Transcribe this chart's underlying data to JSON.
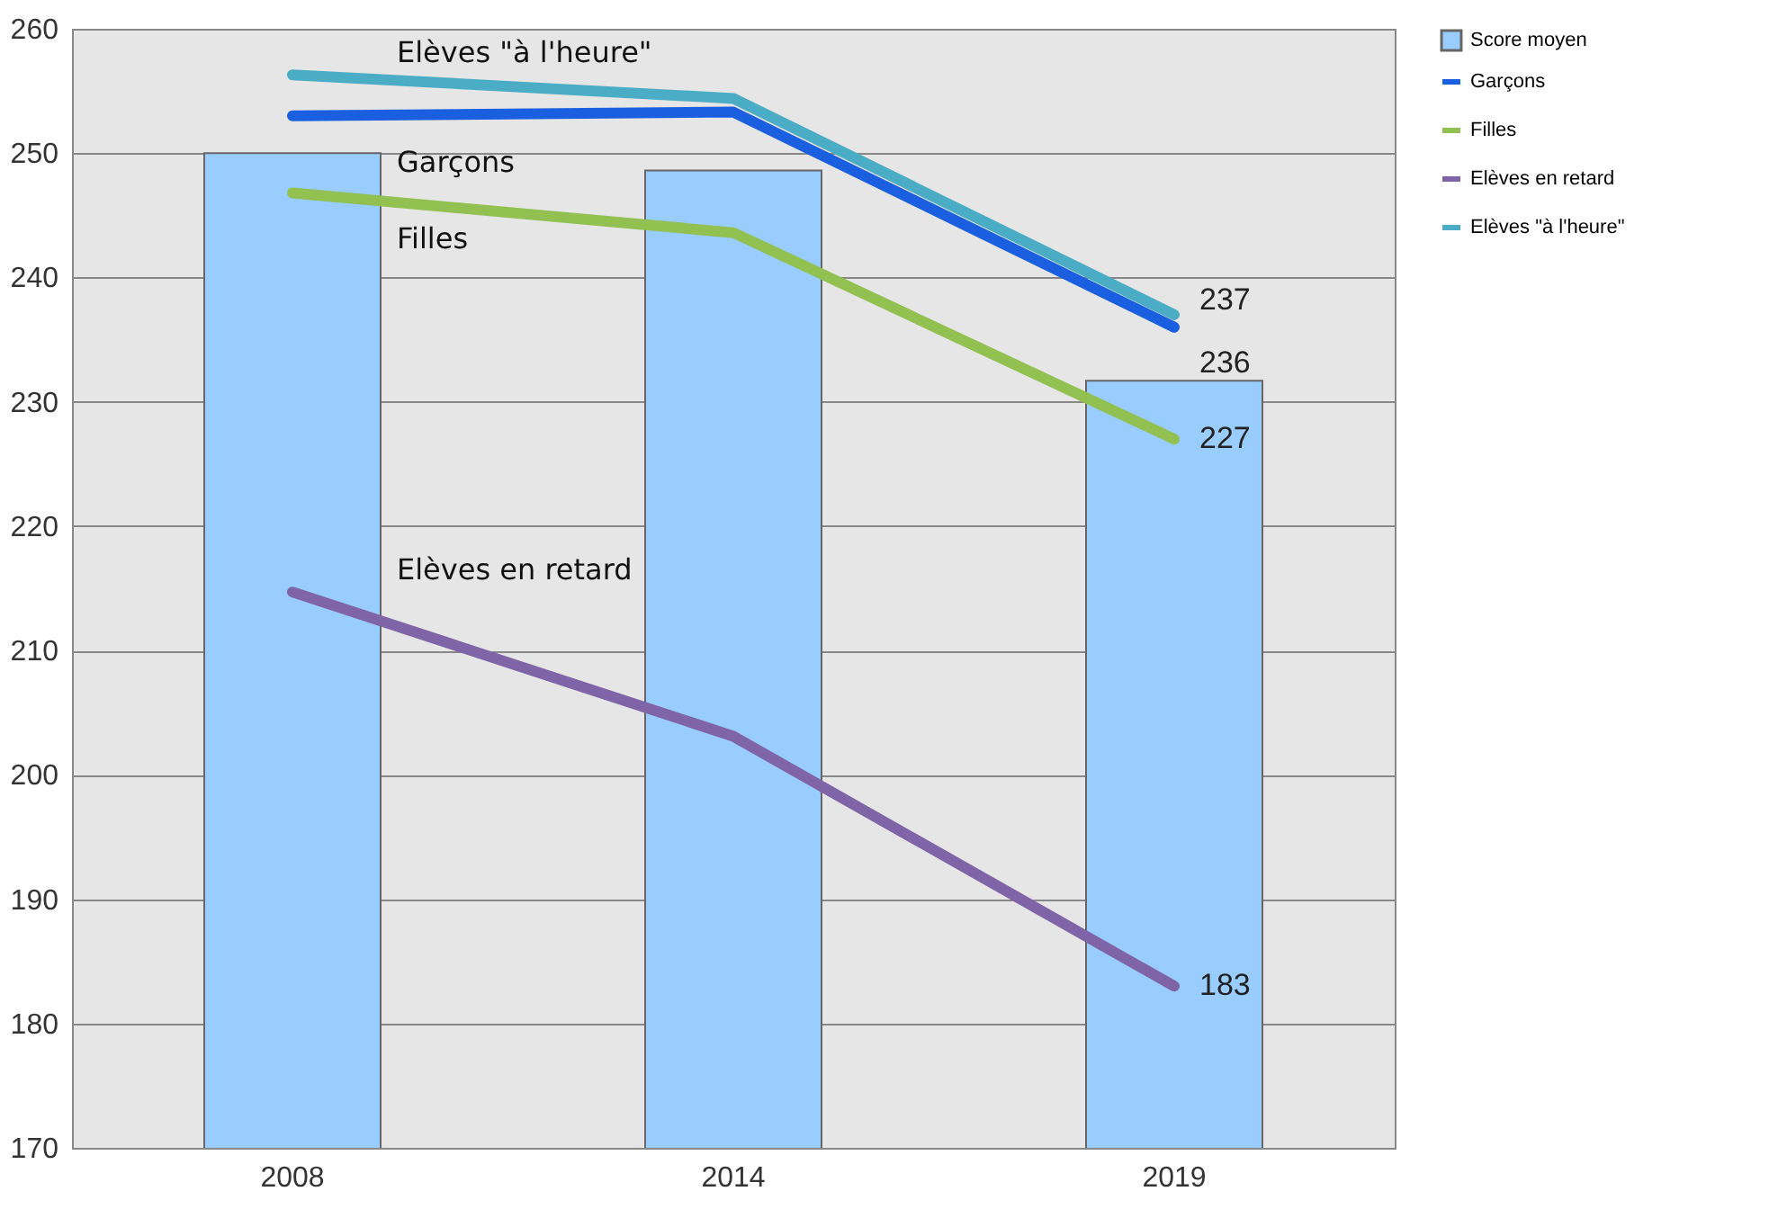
{
  "chart_data": {
    "type": "bar",
    "categories": [
      "2008",
      "2014",
      "2019"
    ],
    "series": [
      {
        "name": "Score moyen",
        "color": "#99ccff",
        "values": [
          250,
          248.6,
          231.7
        ]
      },
      {
        "name": "Garçons",
        "type": "line",
        "color": "#1a5fe0",
        "values": [
          253,
          253.3,
          236
        ],
        "value_labels": [
          null,
          null,
          "236"
        ]
      },
      {
        "name": "Filles",
        "type": "line",
        "color": "#92c051",
        "values": [
          246.8,
          243.6,
          227
        ],
        "value_labels": [
          null,
          null,
          "227"
        ]
      },
      {
        "name": "Elèves en retard",
        "type": "line",
        "color": "#8064a8",
        "values": [
          214.7,
          203.1,
          183
        ],
        "value_labels": [
          null,
          null,
          "183"
        ]
      },
      {
        "name": "Elèves \"à l'heure\"",
        "type": "line",
        "color": "#4bacc6",
        "values": [
          256.3,
          254.4,
          237
        ],
        "value_labels": [
          null,
          null,
          "237"
        ]
      }
    ],
    "ylim": [
      170,
      260
    ],
    "yticks": [
      170,
      180,
      190,
      200,
      210,
      220,
      230,
      240,
      250,
      260
    ],
    "grid": "y",
    "legend": "right"
  }
}
